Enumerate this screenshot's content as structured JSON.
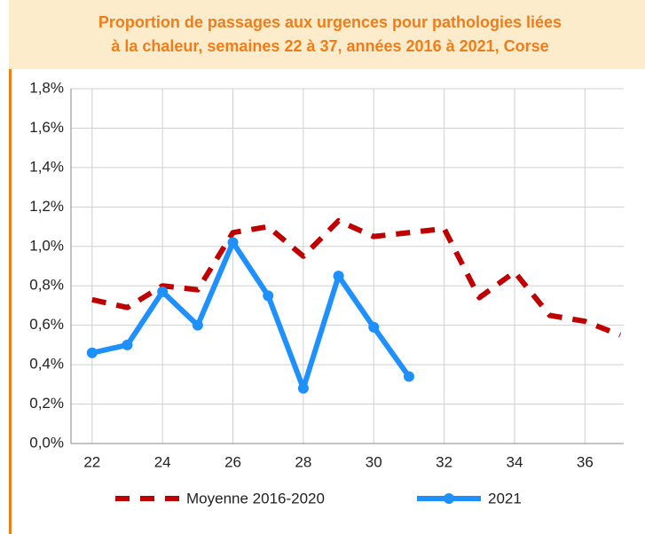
{
  "chart_data": {
    "type": "line",
    "title": [
      "Proportion de passages aux urgences pour pathologies liées",
      "à la chaleur, semaines 22 à 37, années 2016 à 2021, Corse"
    ],
    "x": [
      22,
      23,
      24,
      25,
      26,
      27,
      28,
      29,
      30,
      31,
      32,
      33,
      34,
      35,
      36,
      37
    ],
    "series": [
      {
        "name": "Moyenne 2016-2020",
        "color": "#c00000",
        "dashed": true,
        "marker": false,
        "values": [
          0.73,
          0.69,
          0.8,
          0.78,
          1.07,
          1.1,
          0.95,
          1.13,
          1.05,
          1.07,
          1.09,
          0.74,
          0.87,
          0.65,
          0.62,
          0.55
        ]
      },
      {
        "name": "2021",
        "color": "#1e90ff",
        "dashed": false,
        "marker": true,
        "values": [
          0.46,
          0.5,
          0.77,
          0.6,
          1.02,
          0.75,
          0.28,
          0.85,
          0.59,
          0.34,
          null,
          null,
          null,
          null,
          null,
          null
        ]
      }
    ],
    "xlim": [
      21.4,
      37.1
    ],
    "xticks": [
      22,
      24,
      26,
      28,
      30,
      32,
      34,
      36
    ],
    "ylim": [
      0,
      1.8
    ],
    "yticks": [
      {
        "value": 0,
        "label": "0,0%"
      },
      {
        "value": 0.2,
        "label": "0,2%"
      },
      {
        "value": 0.4,
        "label": "0,4%"
      },
      {
        "value": 0.6,
        "label": "0,6%"
      },
      {
        "value": 0.8,
        "label": "0,8%"
      },
      {
        "value": 1.0,
        "label": "1,0%"
      },
      {
        "value": 1.2,
        "label": "1,2%"
      },
      {
        "value": 1.4,
        "label": "1,4%"
      },
      {
        "value": 1.6,
        "label": "1,6%"
      },
      {
        "value": 1.8,
        "label": "1,8%"
      }
    ],
    "grid": true,
    "legend": "bottom"
  }
}
